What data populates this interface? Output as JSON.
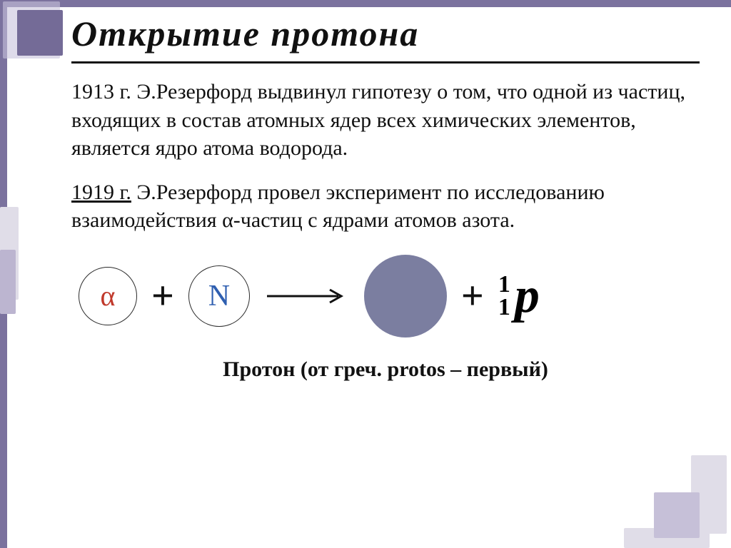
{
  "title": "Открытие протона",
  "title_fontsize": 50,
  "para1": "1913 г. Э.Резерфорд выдвинул гипотезу о том, что одной из частиц, входящих в состав атомных ядер всех химических элементов, является ядро атома водорода.",
  "para2_prefix": "1919 г.",
  "para2_rest": " Э.Резерфорд провел эксперимент по исследованию взаимодействия α-частиц с ядрами атомов азота.",
  "body_fontsize": 30,
  "reaction": {
    "alpha": {
      "label": "α",
      "diameter": 82,
      "border_color": "#2b2b2b",
      "border_width": 1,
      "fill": "#ffffff",
      "text_color": "#c0392b",
      "font_size": 40
    },
    "nitrogen": {
      "label": "N",
      "diameter": 86,
      "border_color": "#2b2b2b",
      "border_width": 1,
      "fill": "#ffffff",
      "text_color": "#2f5fb0",
      "font_size": 42
    },
    "product": {
      "diameter": 116,
      "fill": "#7b7ea0",
      "border_width": 0
    },
    "proton": {
      "mass": "1",
      "charge": "1",
      "symbol": "p"
    },
    "plus": "+",
    "arrow_color": "#111111"
  },
  "footer": "Протон (от греч. protos – первый)",
  "footer_fontsize": 30,
  "colors": {
    "frame_purple": "#7b729e",
    "frame_light": "#e0dde8",
    "frame_mid": "#c6c0d8",
    "text": "#111111",
    "background": "#ffffff"
  }
}
